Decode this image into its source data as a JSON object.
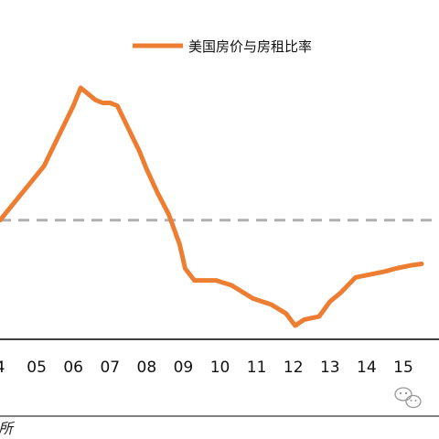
{
  "chart_data": {
    "type": "line",
    "series": [
      {
        "name": "美国房价与房租比率",
        "color": "#ED7D31",
        "points": [
          [
            2004.0,
            0.3
          ],
          [
            2004.4,
            0.36
          ],
          [
            2004.8,
            0.42
          ],
          [
            2005.2,
            0.48
          ],
          [
            2005.6,
            0.58
          ],
          [
            2006.0,
            0.68
          ],
          [
            2006.2,
            0.74
          ],
          [
            2006.4,
            0.72
          ],
          [
            2006.6,
            0.7
          ],
          [
            2006.8,
            0.69
          ],
          [
            2007.0,
            0.69
          ],
          [
            2007.2,
            0.68
          ],
          [
            2007.4,
            0.63
          ],
          [
            2007.6,
            0.58
          ],
          [
            2007.8,
            0.53
          ],
          [
            2008.0,
            0.47
          ],
          [
            2008.3,
            0.39
          ],
          [
            2008.6,
            0.32
          ],
          [
            2008.9,
            0.22
          ],
          [
            2009.05,
            0.14
          ],
          [
            2009.3,
            0.1
          ],
          [
            2009.6,
            0.1
          ],
          [
            2009.9,
            0.1
          ],
          [
            2010.15,
            0.09
          ],
          [
            2010.3,
            0.085
          ],
          [
            2010.5,
            0.07
          ],
          [
            2010.9,
            0.04
          ],
          [
            2011.4,
            0.02
          ],
          [
            2011.8,
            -0.01
          ],
          [
            2012.05,
            -0.05
          ],
          [
            2012.3,
            -0.03
          ],
          [
            2012.7,
            -0.02
          ],
          [
            2013.0,
            0.03
          ],
          [
            2013.3,
            0.06
          ],
          [
            2013.7,
            0.11
          ],
          [
            2014.1,
            0.12
          ],
          [
            2014.5,
            0.13
          ],
          [
            2014.8,
            0.14
          ],
          [
            2015.2,
            0.15
          ],
          [
            2015.5,
            0.155
          ]
        ]
      }
    ],
    "reference_line": {
      "y": 0.3,
      "style": "dashed",
      "color": "#B0B0B0"
    },
    "x_ticks": [
      "4",
      "05",
      "06",
      "07",
      "08",
      "09",
      "10",
      "11",
      "12",
      "13",
      "14",
      "15"
    ],
    "x_tick_values": [
      2004,
      2005,
      2006,
      2007,
      2008,
      2009,
      2010,
      2011,
      2012,
      2013,
      2014,
      2015
    ],
    "xlim": [
      2004.0,
      2015.5
    ],
    "ylim": [
      -0.05,
      0.74
    ],
    "legend": {
      "position": "top-center"
    }
  },
  "source_fragment": "所",
  "watermark": {
    "icon": "wechat-icon"
  }
}
